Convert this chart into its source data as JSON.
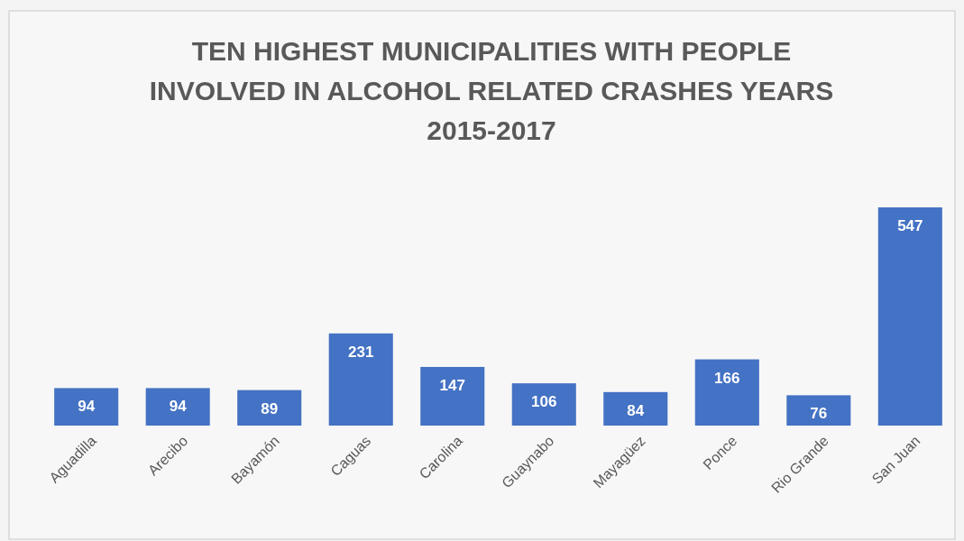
{
  "chart_data": {
    "type": "bar",
    "title": "TEN HIGHEST MUNICIPALITIES WITH PEOPLE INVOLVED IN ALCOHOL RELATED CRASHES YEARS 2015-2017",
    "categories": [
      "Aguadilla",
      "Arecibo",
      "Bayamón",
      "Caguas",
      "Carolina",
      "Guaynabo",
      "Mayagüez",
      "Ponce",
      "Rio Grande",
      "San Juan"
    ],
    "values": [
      94,
      94,
      89,
      231,
      147,
      106,
      84,
      166,
      76,
      547
    ],
    "color": "#4472c4",
    "data_labels": true
  }
}
